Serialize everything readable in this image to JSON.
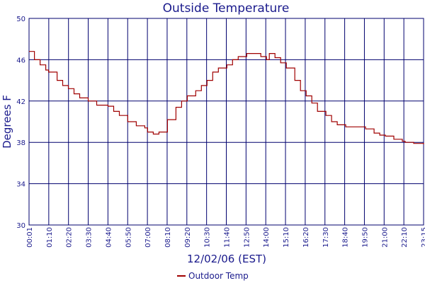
{
  "chart_data": {
    "type": "line",
    "title": "Outside Temperature",
    "xlabel": "12/02/06 (EST)",
    "ylabel": "Degrees F",
    "ylim": [
      30,
      50
    ],
    "yticks": [
      30,
      34,
      38,
      42,
      46,
      50
    ],
    "x_tick_labels": [
      "00:01",
      "01:10",
      "02:20",
      "03:30",
      "04:40",
      "05:50",
      "07:00",
      "08:10",
      "09:20",
      "10:30",
      "11:40",
      "12:50",
      "14:00",
      "15:10",
      "16:20",
      "17:30",
      "18:40",
      "19:50",
      "21:00",
      "22:10",
      "23:15"
    ],
    "grid": true,
    "legend_position": "bottom-center",
    "colors": {
      "line": "#a00000",
      "grid": "#00006e",
      "text": "#1a1a8c"
    },
    "series": [
      {
        "name": "Outdoor Temp",
        "x": [
          "00:01",
          "00:20",
          "00:40",
          "01:00",
          "01:10",
          "01:40",
          "02:00",
          "02:20",
          "02:40",
          "03:00",
          "03:30",
          "04:00",
          "04:20",
          "04:40",
          "05:00",
          "05:20",
          "05:50",
          "06:20",
          "06:50",
          "07:00",
          "07:20",
          "07:40",
          "08:10",
          "08:40",
          "09:00",
          "09:20",
          "09:50",
          "10:10",
          "10:30",
          "10:50",
          "11:10",
          "11:40",
          "12:00",
          "12:20",
          "12:50",
          "13:10",
          "13:40",
          "14:00",
          "14:10",
          "14:30",
          "14:50",
          "15:10",
          "15:40",
          "16:00",
          "16:20",
          "16:40",
          "17:00",
          "17:30",
          "17:50",
          "18:10",
          "18:40",
          "19:00",
          "19:30",
          "19:50",
          "20:20",
          "20:40",
          "21:00",
          "21:30",
          "22:00",
          "22:10",
          "22:40",
          "23:00",
          "23:15"
        ],
        "values": [
          46.8,
          46.0,
          45.5,
          45.0,
          44.8,
          44.0,
          43.5,
          43.2,
          42.7,
          42.3,
          42.0,
          41.6,
          41.6,
          41.5,
          41.0,
          40.6,
          40.0,
          39.6,
          39.4,
          39.0,
          38.8,
          39.0,
          40.2,
          41.4,
          42.0,
          42.5,
          43.0,
          43.5,
          44.0,
          44.8,
          45.2,
          45.5,
          46.0,
          46.3,
          46.6,
          46.6,
          46.3,
          46.0,
          46.6,
          46.2,
          45.7,
          45.2,
          44.0,
          43.0,
          42.5,
          41.8,
          41.0,
          40.6,
          40.0,
          39.7,
          39.5,
          39.5,
          39.5,
          39.3,
          38.9,
          38.7,
          38.6,
          38.3,
          38.1,
          38.0,
          37.9,
          37.9,
          37.8
        ]
      }
    ]
  }
}
